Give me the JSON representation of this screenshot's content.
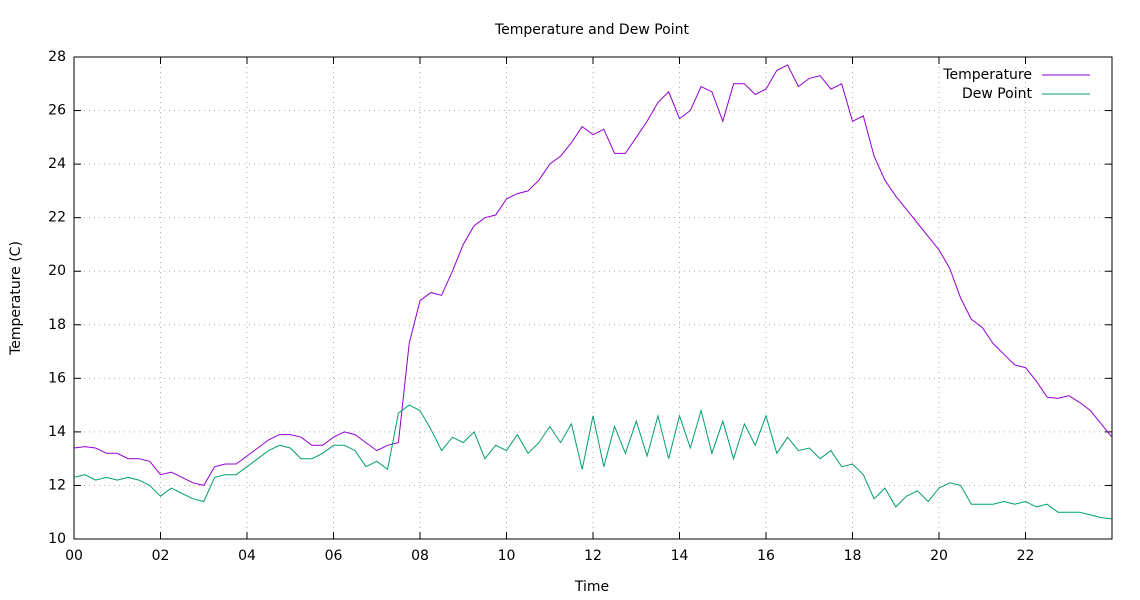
{
  "chart_data": {
    "type": "line",
    "title": "Temperature and Dew Point",
    "x_label": "Time",
    "y_label": "Temperature (C)",
    "xlim": [
      0,
      24
    ],
    "ylim": [
      10,
      28
    ],
    "xticks": [
      {
        "value": 0,
        "label": "00"
      },
      {
        "value": 2,
        "label": "02"
      },
      {
        "value": 4,
        "label": "04"
      },
      {
        "value": 6,
        "label": "06"
      },
      {
        "value": 8,
        "label": "08"
      },
      10,
      12,
      14,
      16,
      18,
      20,
      22
    ],
    "yticks": [
      10,
      12,
      14,
      16,
      18,
      20,
      22,
      24,
      26,
      28
    ],
    "grid": true,
    "legend": "top-right",
    "x": [
      0,
      0.25,
      0.5,
      0.75,
      1,
      1.25,
      1.5,
      1.75,
      2,
      2.25,
      2.5,
      2.75,
      3,
      3.25,
      3.5,
      3.75,
      4,
      4.25,
      4.5,
      4.75,
      5,
      5.25,
      5.5,
      5.75,
      6,
      6.25,
      6.5,
      6.75,
      7,
      7.25,
      7.5,
      7.75,
      8,
      8.25,
      8.5,
      8.75,
      9,
      9.25,
      9.5,
      9.75,
      10,
      10.25,
      10.5,
      10.75,
      11,
      11.25,
      11.5,
      11.75,
      12,
      12.25,
      12.5,
      12.75,
      13,
      13.25,
      13.5,
      13.75,
      14,
      14.25,
      14.5,
      14.75,
      15,
      15.25,
      15.5,
      15.75,
      16,
      16.25,
      16.5,
      16.75,
      17,
      17.25,
      17.5,
      17.75,
      18,
      18.25,
      18.5,
      18.75,
      19,
      19.25,
      19.5,
      19.75,
      20,
      20.25,
      20.5,
      20.75,
      21,
      21.25,
      21.5,
      21.75,
      22,
      22.25,
      22.5,
      22.75,
      23,
      23.25,
      23.5,
      23.75,
      24
    ],
    "series": [
      {
        "name": "Temperature",
        "color": "#9400d3",
        "values": [
          13.4,
          13.45,
          13.4,
          13.2,
          13.2,
          13.0,
          13.0,
          12.9,
          12.4,
          12.5,
          12.3,
          12.1,
          12.0,
          12.7,
          12.8,
          12.8,
          13.1,
          13.4,
          13.7,
          13.9,
          13.9,
          13.8,
          13.5,
          13.5,
          13.8,
          14.0,
          13.9,
          13.6,
          13.3,
          13.5,
          13.6,
          17.3,
          18.9,
          19.2,
          19.1,
          20.0,
          21.0,
          21.7,
          22.0,
          22.1,
          22.7,
          22.9,
          23.0,
          23.4,
          24.0,
          24.3,
          24.8,
          25.4,
          25.1,
          25.3,
          24.4,
          24.4,
          25.0,
          25.6,
          26.3,
          26.7,
          25.7,
          26.0,
          26.9,
          26.7,
          25.6,
          27.0,
          27.0,
          26.6,
          26.8,
          27.5,
          27.7,
          26.9,
          27.2,
          27.3,
          26.8,
          27.0,
          25.6,
          25.8,
          24.3,
          23.4,
          22.8,
          22.3,
          21.8,
          21.3,
          20.8,
          20.1,
          19.0,
          18.2,
          17.9,
          17.3,
          16.9,
          16.5,
          16.4,
          15.9,
          15.3,
          15.25,
          15.35,
          15.1,
          14.8,
          14.3,
          13.8
        ]
      },
      {
        "name": "Dew Point",
        "color": "#009e73",
        "values": [
          12.3,
          12.4,
          12.2,
          12.3,
          12.2,
          12.3,
          12.2,
          12.0,
          11.6,
          11.9,
          11.7,
          11.5,
          11.4,
          12.3,
          12.4,
          12.4,
          12.7,
          13.0,
          13.3,
          13.5,
          13.4,
          13.0,
          13.0,
          13.2,
          13.5,
          13.5,
          13.3,
          12.7,
          12.9,
          12.6,
          14.7,
          15.0,
          14.8,
          14.1,
          13.3,
          13.8,
          13.6,
          14.0,
          13.0,
          13.5,
          13.3,
          13.9,
          13.2,
          13.6,
          14.2,
          13.6,
          14.3,
          12.6,
          14.6,
          12.7,
          14.2,
          13.2,
          14.4,
          13.1,
          14.6,
          13.0,
          14.6,
          13.4,
          14.8,
          13.2,
          14.4,
          13.0,
          14.3,
          13.5,
          14.6,
          13.2,
          13.8,
          13.3,
          13.4,
          13.0,
          13.3,
          12.7,
          12.8,
          12.4,
          11.5,
          11.9,
          11.2,
          11.6,
          11.8,
          11.4,
          11.9,
          12.1,
          12.0,
          11.3,
          11.3,
          11.3,
          11.4,
          11.3,
          11.4,
          11.2,
          11.3,
          11.0,
          11.0,
          11.0,
          10.9,
          10.8,
          10.75
        ]
      }
    ]
  }
}
